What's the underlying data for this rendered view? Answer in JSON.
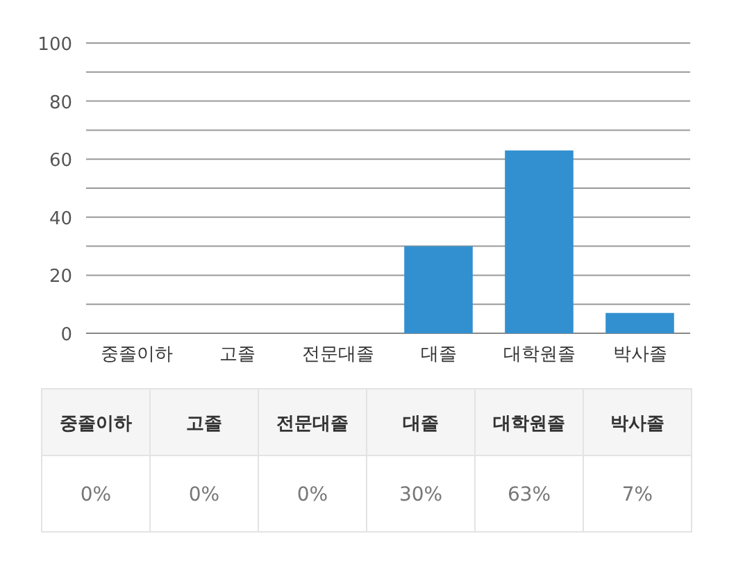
{
  "chart_data": {
    "type": "bar",
    "categories": [
      "중졸이하",
      "고졸",
      "전문대졸",
      "대졸",
      "대학원졸",
      "박사졸"
    ],
    "values": [
      0,
      0,
      0,
      30,
      63,
      7
    ],
    "value_labels": [
      "0%",
      "0%",
      "0%",
      "30%",
      "63%",
      "7%"
    ],
    "color": "#3390d0",
    "ylim": [
      0,
      100
    ],
    "yticks": [
      0,
      {
        "value": 10,
        "label": null
      },
      20,
      {
        "value": 30,
        "label": null
      },
      40,
      {
        "value": 50,
        "label": null
      },
      60,
      {
        "value": 70,
        "label": null
      },
      80,
      {
        "value": 90,
        "label": null
      },
      100
    ],
    "grid": "y"
  }
}
